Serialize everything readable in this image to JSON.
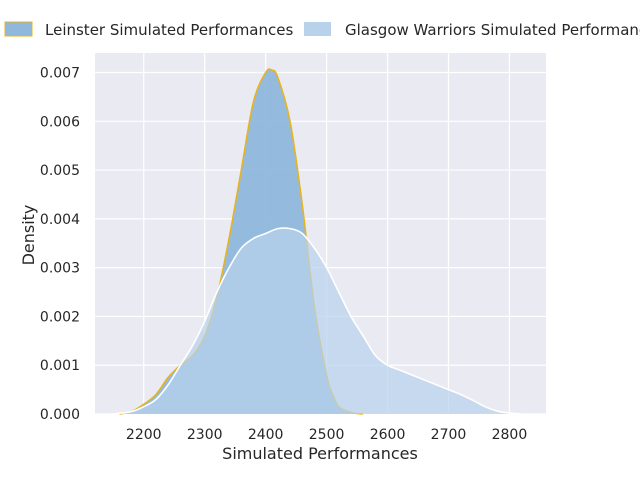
{
  "chart_data": {
    "type": "area",
    "title": "",
    "xlabel": "Simulated Performances",
    "ylabel": "Density",
    "xlim": [
      2120,
      2860
    ],
    "ylim": [
      0,
      0.0074
    ],
    "x_ticks": [
      2200,
      2300,
      2400,
      2500,
      2600,
      2700,
      2800
    ],
    "y_ticks": [
      0.0,
      0.001,
      0.002,
      0.003,
      0.004,
      0.005,
      0.006,
      0.007
    ],
    "y_tick_labels": [
      "0.000",
      "0.001",
      "0.002",
      "0.003",
      "0.004",
      "0.005",
      "0.006",
      "0.007"
    ],
    "grid": true,
    "legend_position": "top",
    "series": [
      {
        "name": "Leinster Simulated Performances",
        "fill_color": "#8fb8dc",
        "edge_color": "#e6b422",
        "x": [
          2160,
          2180,
          2200,
          2220,
          2240,
          2260,
          2280,
          2300,
          2320,
          2340,
          2360,
          2380,
          2400,
          2410,
          2420,
          2440,
          2460,
          2480,
          2500,
          2510,
          2520,
          2540,
          2560
        ],
        "y": [
          0.0,
          5e-05,
          0.0002,
          0.0004,
          0.00075,
          0.001,
          0.0012,
          0.0016,
          0.0024,
          0.0036,
          0.005,
          0.0064,
          0.007,
          0.00705,
          0.0069,
          0.006,
          0.0043,
          0.0022,
          0.0008,
          0.0004,
          0.00015,
          3e-05,
          0.0
        ]
      },
      {
        "name": "Glasgow Warriors Simulated Performances",
        "fill_color": "#b9d2ec",
        "edge_color": "#ffffff",
        "x": [
          2150,
          2180,
          2200,
          2220,
          2240,
          2260,
          2280,
          2300,
          2320,
          2340,
          2360,
          2380,
          2400,
          2420,
          2440,
          2460,
          2480,
          2500,
          2520,
          2540,
          2560,
          2580,
          2600,
          2620,
          2640,
          2660,
          2680,
          2700,
          2720,
          2740,
          2760,
          2780,
          2800,
          2820
        ],
        "y": [
          0.0,
          5e-05,
          0.00015,
          0.0003,
          0.0006,
          0.001,
          0.0014,
          0.0019,
          0.0025,
          0.003,
          0.0034,
          0.0036,
          0.0037,
          0.0038,
          0.0038,
          0.0037,
          0.0034,
          0.003,
          0.0025,
          0.002,
          0.0016,
          0.0012,
          0.001,
          0.0009,
          0.0008,
          0.0007,
          0.0006,
          0.0005,
          0.0004,
          0.00028,
          0.00015,
          6e-05,
          2e-05,
          0.0
        ]
      }
    ]
  }
}
